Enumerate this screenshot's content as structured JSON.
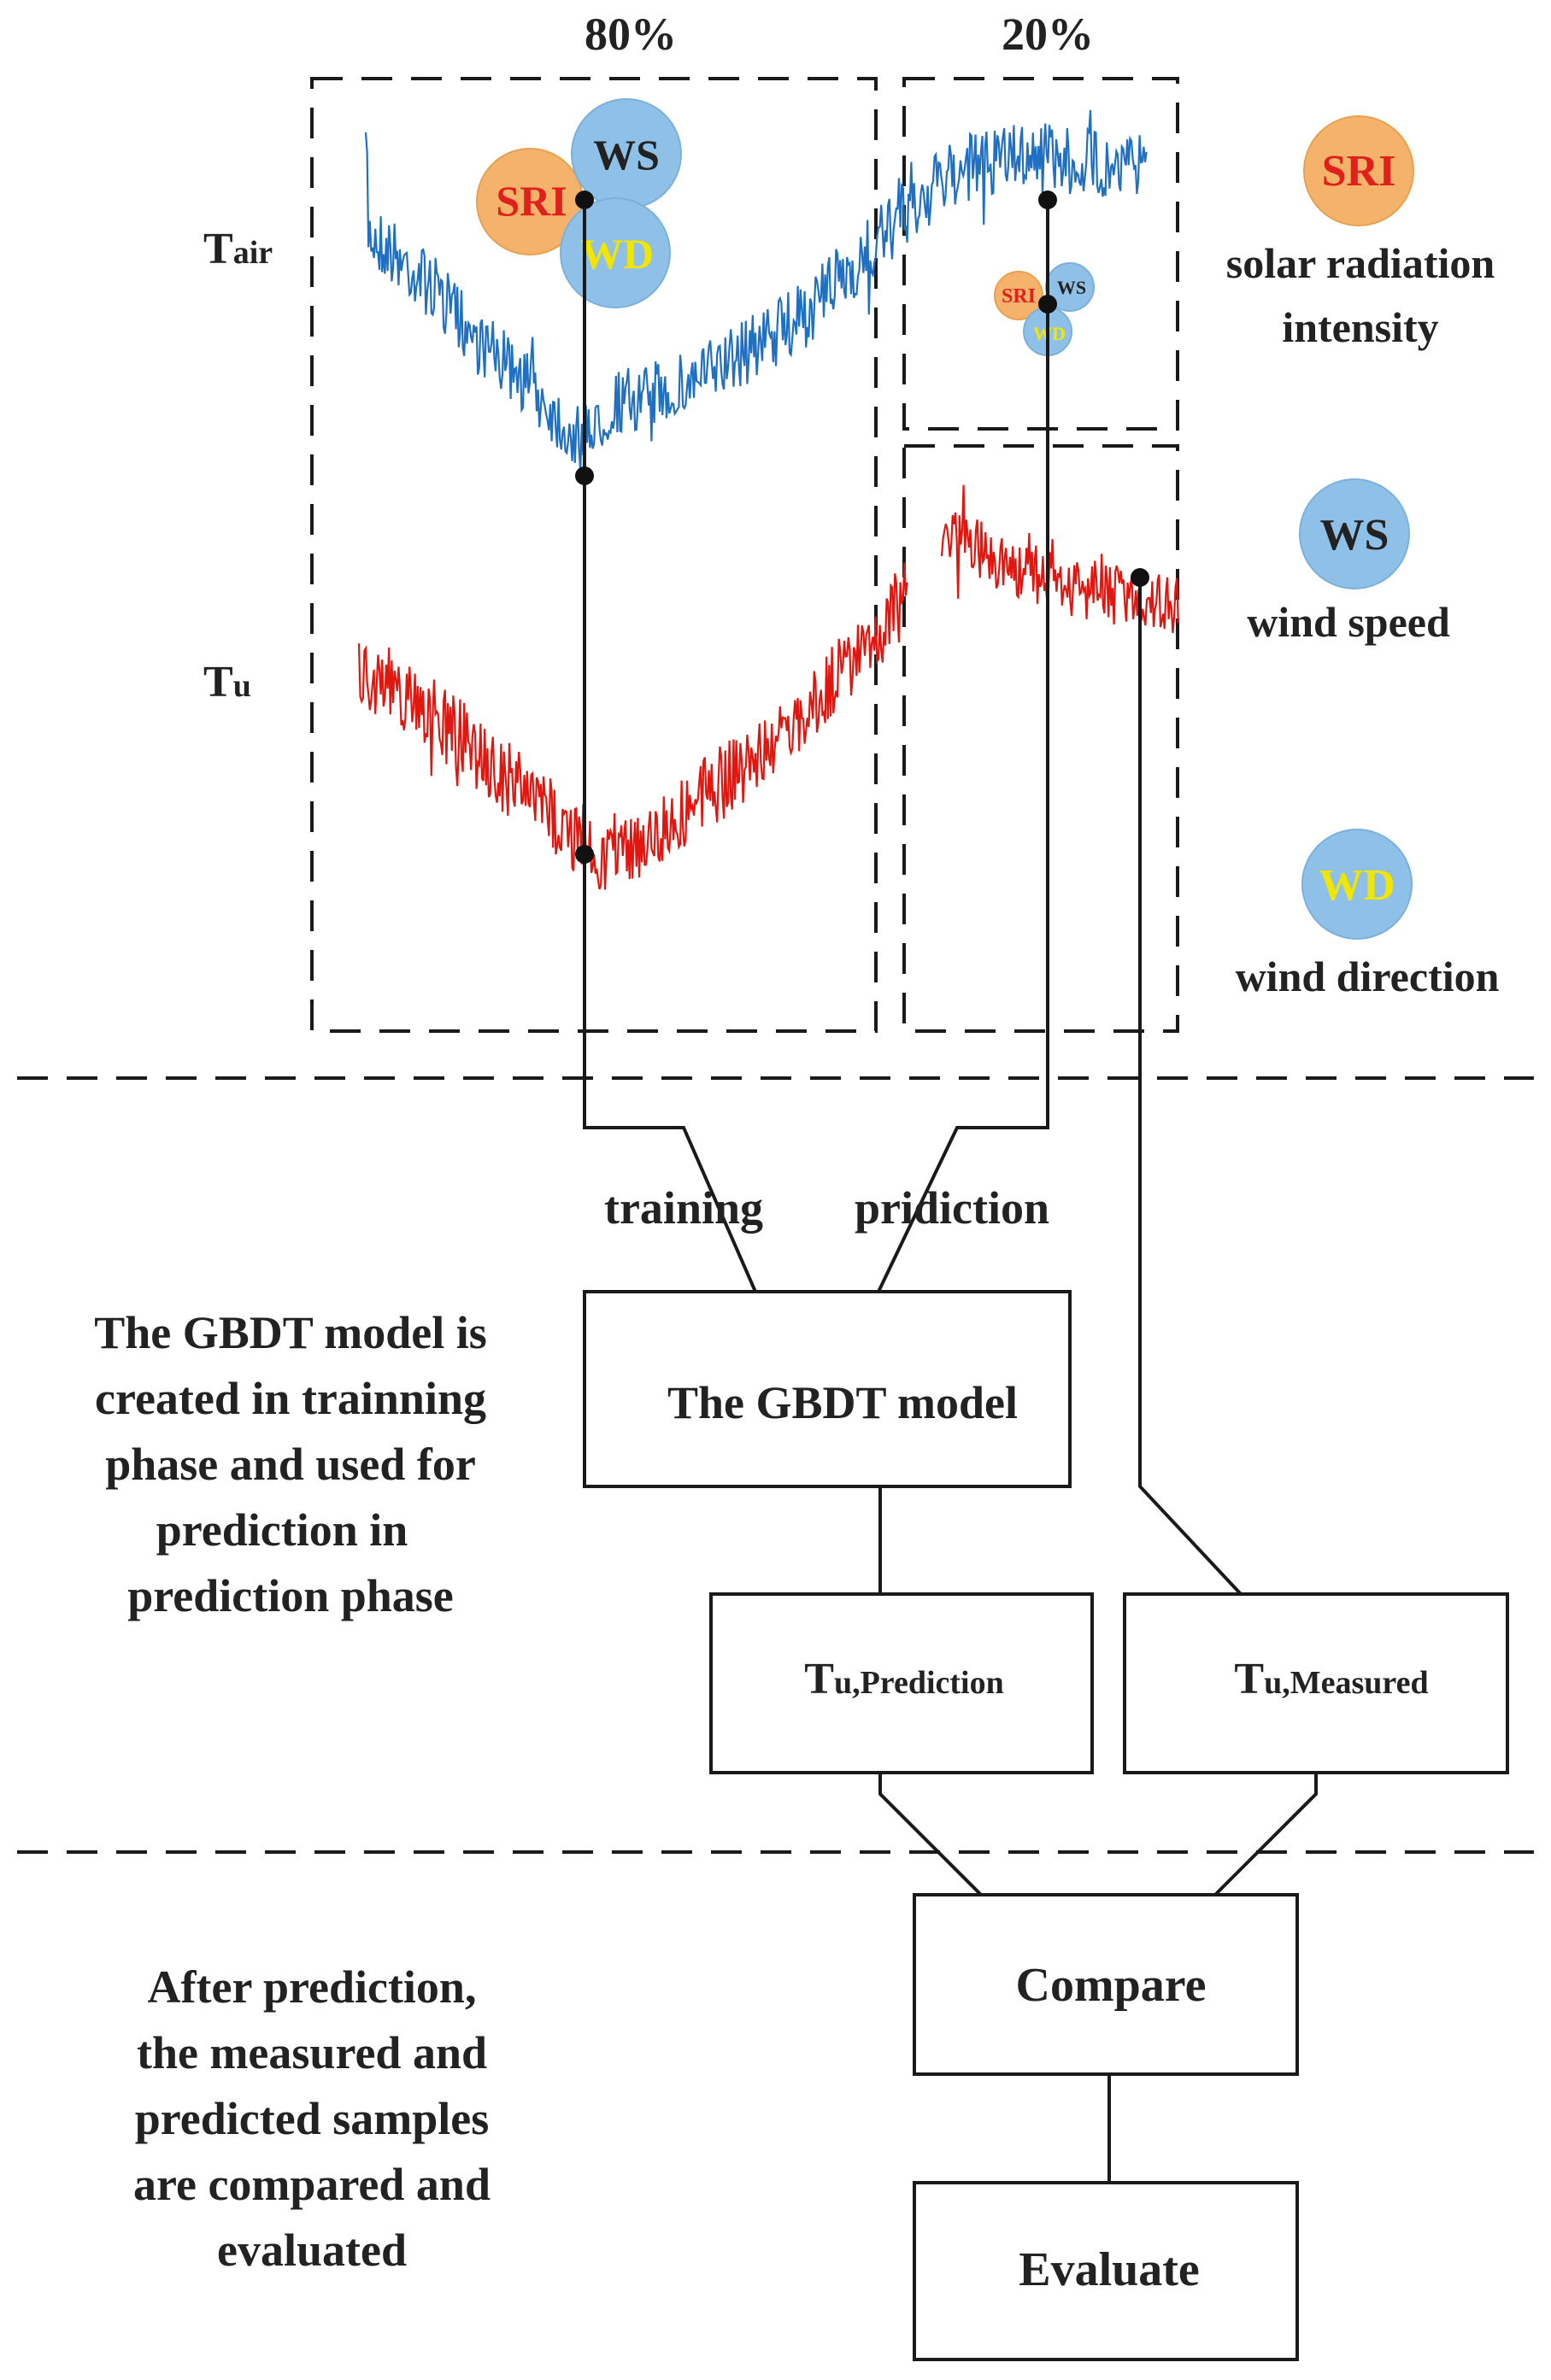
{
  "split": {
    "train_pct": "80%",
    "test_pct": "20%"
  },
  "series": {
    "t_air": {
      "main": "T",
      "sub": "air"
    },
    "t_u": {
      "main": "T",
      "sub": "u"
    }
  },
  "features": {
    "sri": {
      "abbr": "SRI",
      "name_line1": "solar radiation",
      "name_line2": "intensity",
      "color": "#f5b26b",
      "text_color": "#e0201a"
    },
    "ws": {
      "abbr": "WS",
      "name": "wind speed",
      "color": "#8fc0e8",
      "text_color": "#111111"
    },
    "wd": {
      "abbr": "WD",
      "name": "wind direction",
      "color": "#8fc0e8",
      "text_color": "#f2e600"
    }
  },
  "small_bubbles": {
    "sri": "SRI",
    "ws": "WS",
    "wd": "WD"
  },
  "flow": {
    "training": "training",
    "prediction": "pridiction"
  },
  "model": {
    "label": "The GBDT model"
  },
  "tu_prediction": {
    "main": "T",
    "sub": "u,Prediction"
  },
  "tu_measured": {
    "main": "T",
    "sub": "u,Measured"
  },
  "compare": {
    "label": "Compare"
  },
  "evaluate": {
    "label": "Evaluate"
  },
  "notes": {
    "model_note": [
      "The GBDT model is",
      "created in trainning",
      "phase and used for",
      "prediction in",
      "prediction phase"
    ],
    "eval_note": [
      "After prediction,",
      "the measured and",
      "predicted samples",
      "are compared and",
      "evaluated"
    ]
  },
  "colors": {
    "t_air_line": "#1f6fc2",
    "t_u_line": "#e3150f"
  }
}
